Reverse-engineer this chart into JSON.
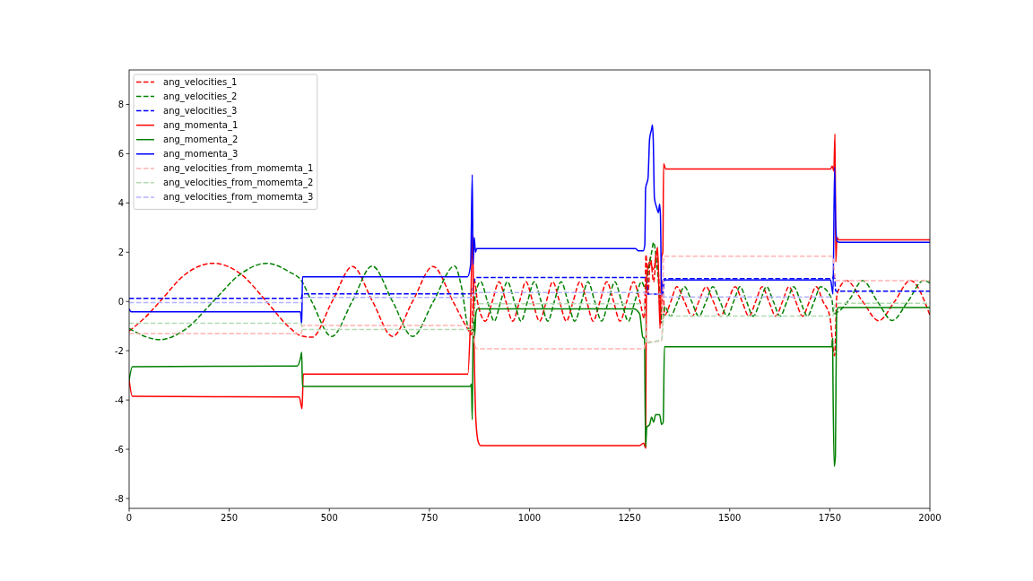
{
  "chart_data": {
    "type": "line",
    "xlim": [
      0,
      2000
    ],
    "ylim": [
      -8.4,
      9.4
    ],
    "xticks": [
      0,
      250,
      500,
      750,
      1000,
      1250,
      1500,
      1750,
      2000
    ],
    "yticks": [
      -8,
      -6,
      -4,
      -2,
      0,
      2,
      4,
      6,
      8
    ],
    "legend": "top left",
    "series": [
      {
        "name": "ang_velocities_1",
        "color": "#ff0000",
        "line_style": "dashed",
        "x": [
          0,
          40,
          77,
          140,
          210,
          280,
          343,
          400,
          430,
          457,
          507,
          558,
          608,
          658,
          708,
          759,
          809,
          845,
          855,
          862,
          870,
          890,
          907,
          924,
          941,
          958,
          975,
          991,
          1008,
          1025,
          1042,
          1058,
          1075,
          1092,
          1109,
          1126,
          1143,
          1159,
          1176,
          1193,
          1210,
          1226,
          1243,
          1260,
          1276,
          1287,
          1291,
          1296,
          1302,
          1310,
          1318,
          1322,
          1328,
          1333,
          1338,
          1353,
          1368,
          1387,
          1406,
          1423,
          1441,
          1459,
          1477,
          1495,
          1514,
          1531,
          1548,
          1565,
          1581,
          1598,
          1615,
          1632,
          1648,
          1665,
          1682,
          1699,
          1716,
          1733,
          1750,
          1762,
          1768,
          1792,
          1832,
          1872,
          1912,
          1951,
          2000
        ],
        "values": [
          -1.2,
          -0.65,
          0,
          1.1,
          1.55,
          1.1,
          0,
          -1.05,
          -1.4,
          -1.45,
          0,
          1.42,
          0,
          -1.42,
          0,
          1.42,
          0,
          -1.1,
          -1.35,
          0.9,
          0,
          -0.8,
          0,
          0.8,
          0,
          -0.8,
          0,
          0.8,
          0,
          -0.8,
          0,
          0.8,
          0,
          -0.8,
          0,
          0.8,
          0,
          -0.8,
          0,
          0.8,
          0,
          -0.8,
          0,
          0.8,
          0,
          -0.7,
          1.9,
          0.3,
          1.8,
          0.8,
          2.0,
          1.2,
          -0.9,
          0.4,
          -0.55,
          0,
          0.6,
          0,
          -0.6,
          0,
          0.6,
          0,
          -0.6,
          0,
          0.6,
          0,
          -0.6,
          0,
          0.6,
          0,
          -0.6,
          0,
          0.6,
          0,
          -0.6,
          0,
          0.6,
          0,
          -0.6,
          -2.2,
          0.3,
          0.85,
          0,
          -0.78,
          0,
          0.85,
          -0.55
        ]
      },
      {
        "name": "ang_velocities_2",
        "color": "#008000",
        "line_style": "dashed",
        "x": [
          0,
          76,
          143,
          210,
          277,
          343,
          400,
          430,
          456,
          506,
          557,
          607,
          658,
          708,
          760,
          813,
          830,
          848,
          858,
          865,
          878,
          895,
          912,
          928,
          945,
          962,
          979,
          995,
          1012,
          1029,
          1046,
          1062,
          1079,
          1096,
          1113,
          1130,
          1146,
          1163,
          1180,
          1197,
          1213,
          1230,
          1247,
          1263,
          1280,
          1290,
          1297,
          1305,
          1310,
          1318,
          1325,
          1332,
          1338,
          1352,
          1370,
          1387,
          1405,
          1423,
          1441,
          1458,
          1476,
          1494,
          1510,
          1526,
          1542,
          1559,
          1576,
          1592,
          1609,
          1626,
          1643,
          1660,
          1677,
          1694,
          1711,
          1727,
          1755,
          1760,
          1768,
          1800,
          1832,
          1869,
          1906,
          1945,
          1984,
          2000
        ],
        "values": [
          -1.1,
          -1.55,
          -1.1,
          0,
          1.1,
          1.55,
          1.2,
          0.85,
          0,
          -1.42,
          0,
          1.44,
          0,
          -1.42,
          0,
          1.44,
          0.6,
          -1.1,
          -1.2,
          0.3,
          0.8,
          0,
          -0.8,
          0,
          0.8,
          0,
          -0.8,
          0,
          0.8,
          0,
          -0.8,
          0,
          0.8,
          0,
          -0.8,
          0,
          0.8,
          0,
          -0.8,
          0,
          0.8,
          0,
          -0.8,
          0,
          0.8,
          0.5,
          1.3,
          2.0,
          2.4,
          1.5,
          0.3,
          -0.9,
          -0.2,
          -0.6,
          0,
          0.6,
          0,
          -0.6,
          0,
          0.6,
          0,
          -0.6,
          0,
          0.6,
          0,
          -0.6,
          0,
          0.6,
          0,
          -0.6,
          0,
          0.6,
          0,
          -0.6,
          0,
          0.6,
          0.1,
          -0.5,
          -0.45,
          0.1,
          0.85,
          0,
          -0.77,
          0,
          0.85,
          0.75
        ]
      },
      {
        "name": "ang_velocities_3",
        "color": "#0000ff",
        "line_style": "dashed",
        "x": [
          0,
          430,
          433,
          855,
          865,
          1292,
          1296,
          1333,
          1337,
          1757,
          1761,
          1765,
          2000
        ],
        "values": [
          0.13,
          0.13,
          0.31,
          0.31,
          0.97,
          0.97,
          0.3,
          0.3,
          0.93,
          0.93,
          1.15,
          0.42,
          0.42
        ]
      },
      {
        "name": "ang_momenta_1",
        "color": "#ff0000",
        "line_style": "solid",
        "x": [
          0,
          8,
          425,
          432,
          435,
          846,
          852,
          858,
          861,
          866,
          872,
          878,
          1275,
          1285,
          1290,
          1292,
          1300,
          1310,
          1320,
          1326,
          1330,
          1333,
          1335,
          1340,
          1752,
          1756,
          1760,
          1763,
          1765,
          1768,
          1772,
          2000
        ],
        "values": [
          -3.2,
          -3.85,
          -3.88,
          -4.35,
          -2.95,
          -2.95,
          -1.0,
          2.7,
          -1.0,
          -4.8,
          -5.7,
          -5.85,
          -5.85,
          -5.75,
          -5.95,
          0.85,
          1.6,
          1.3,
          2.2,
          -1.1,
          1.8,
          2.0,
          5.6,
          5.38,
          5.38,
          5.5,
          5.3,
          6.8,
          1.6,
          2.6,
          2.5,
          2.5
        ]
      },
      {
        "name": "ang_momenta_2",
        "color": "#008000",
        "line_style": "solid",
        "x": [
          0,
          8,
          420,
          428,
          431,
          433,
          852,
          855,
          857,
          859,
          861,
          863,
          866,
          870,
          1260,
          1275,
          1283,
          1287,
          1290,
          1293,
          1300,
          1305,
          1310,
          1315,
          1325,
          1330,
          1334,
          1337,
          1755,
          1757,
          1758,
          1761,
          1764,
          1767,
          1772,
          2000
        ],
        "values": [
          -3.2,
          -2.65,
          -2.62,
          -2.3,
          -2.07,
          -3.45,
          -3.45,
          -3.35,
          -4.8,
          -1.5,
          -0.6,
          -1.4,
          -0.5,
          -0.3,
          -0.3,
          -0.5,
          -1.45,
          -1.5,
          -5.9,
          -5.1,
          -5.0,
          -4.7,
          -4.9,
          -4.6,
          -4.6,
          -5.0,
          -4.9,
          -1.84,
          -1.84,
          -1.5,
          -3.35,
          -6.7,
          -6.3,
          -0.42,
          -0.25,
          -0.25
        ]
      },
      {
        "name": "ang_momenta_3",
        "color": "#0000ff",
        "line_style": "solid",
        "x": [
          0,
          5,
          428,
          431,
          433,
          845,
          853,
          857,
          859,
          862,
          865,
          868,
          1265,
          1272,
          1284,
          1288,
          1290,
          1296,
          1300,
          1305,
          1307,
          1309,
          1312,
          1318,
          1322,
          1325,
          1327,
          1330,
          1333,
          1752,
          1758,
          1762,
          1765,
          1768,
          1775,
          2000
        ],
        "values": [
          -0.3,
          -0.42,
          -0.42,
          -0.97,
          1.0,
          1.0,
          1.5,
          5.15,
          1.5,
          2.6,
          2.0,
          2.15,
          2.15,
          2.06,
          2.06,
          2.3,
          4.6,
          5.0,
          6.6,
          7.0,
          7.17,
          6.6,
          4.2,
          3.8,
          3.6,
          3.95,
          3.5,
          0.27,
          0.87,
          0.87,
          0.3,
          5.45,
          3.0,
          2.45,
          2.4,
          2.4
        ]
      },
      {
        "name": "ang_velocities_from_momemta_1",
        "color": "#ffb3b3",
        "line_style": "dashed",
        "x": [
          0,
          430,
          433,
          858,
          862,
          868,
          1285,
          1290,
          1295,
          1330,
          1336,
          1757,
          1765,
          2000
        ],
        "values": [
          -1.3,
          -1.3,
          -0.97,
          -0.97,
          -1.6,
          -1.92,
          -1.92,
          -1.7,
          -1.65,
          -1.6,
          1.84,
          1.84,
          0.85,
          0.85
        ]
      },
      {
        "name": "ang_velocities_from_momemta_2",
        "color": "#b3d9b3",
        "line_style": "dashed",
        "x": [
          0,
          430,
          433,
          857,
          865,
          1287,
          1292,
          1318,
          1330,
          1336,
          1757,
          1765,
          2000
        ],
        "values": [
          -0.88,
          -0.88,
          -1.14,
          -1.14,
          -0.09,
          -0.09,
          -1.7,
          -1.6,
          -1.55,
          -0.59,
          -0.59,
          -0.07,
          -0.07
        ]
      },
      {
        "name": "ang_velocities_from_momemta_3",
        "color": "#b3b3ff",
        "line_style": "dashed",
        "x": [
          0,
          430,
          433,
          857,
          865,
          1287,
          1292,
          1333,
          1337,
          1757
        ],
        "values": [
          -0.05,
          -0.05,
          0.16,
          0.16,
          0.36,
          0.36,
          0.3,
          0.3,
          0.18,
          0.18
        ]
      }
    ]
  }
}
